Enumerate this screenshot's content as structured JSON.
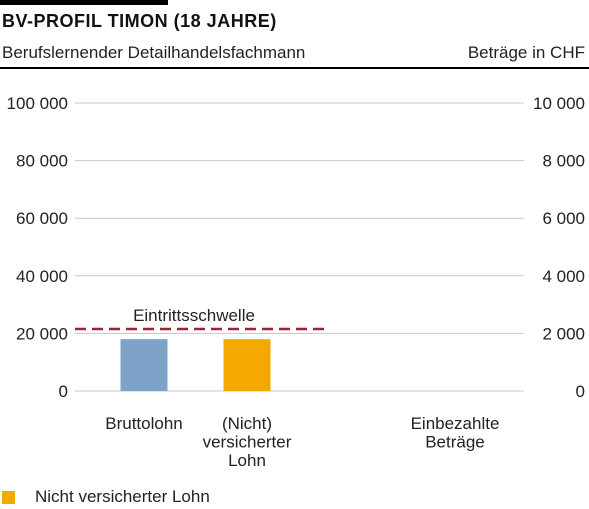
{
  "header": {
    "title": "BV-PROFIL TIMON (18 JAHRE)",
    "subtitle": "Berufslernender Detailhandelsfachmann",
    "units": "Beträge in CHF"
  },
  "chart_data": {
    "type": "bar",
    "title": "BV-PROFIL TIMON (18 JAHRE)",
    "subtitle": "Berufslernender Detailhandelsfachmann",
    "units": "Beträge in CHF",
    "ylim": [
      0,
      100000
    ],
    "y2lim": [
      0,
      10000
    ],
    "yticks": [
      0,
      20000,
      40000,
      60000,
      80000,
      100000
    ],
    "ytick_labels": [
      "0",
      "20 000",
      "40 000",
      "60 000",
      "80 000",
      "100 000"
    ],
    "y2ticks": [
      0,
      2000,
      4000,
      6000,
      8000,
      10000
    ],
    "y2tick_labels": [
      "0",
      "2 000",
      "4 000",
      "6 000",
      "8 000",
      "10 000"
    ],
    "grid": true,
    "categories": [
      {
        "label_lines": [
          "Bruttolohn"
        ]
      },
      {
        "label_lines": [
          "(Nicht)",
          "versicherter",
          "Lohn"
        ]
      },
      {
        "label_lines": [
          "Einbezahlte",
          "Beträge"
        ]
      }
    ],
    "bars": [
      {
        "category_index": 0,
        "value": 18000,
        "color": "#7ea3c8"
      },
      {
        "category_index": 1,
        "value": 18000,
        "color": "#f5a800"
      }
    ],
    "threshold": {
      "label": "Eintrittsschwelle",
      "value": 21510,
      "color": "#9b2335"
    },
    "legend": [
      {
        "label": "Nicht versicherter Lohn",
        "color": "#f5a800"
      }
    ],
    "legend_position": "bottom-left"
  }
}
